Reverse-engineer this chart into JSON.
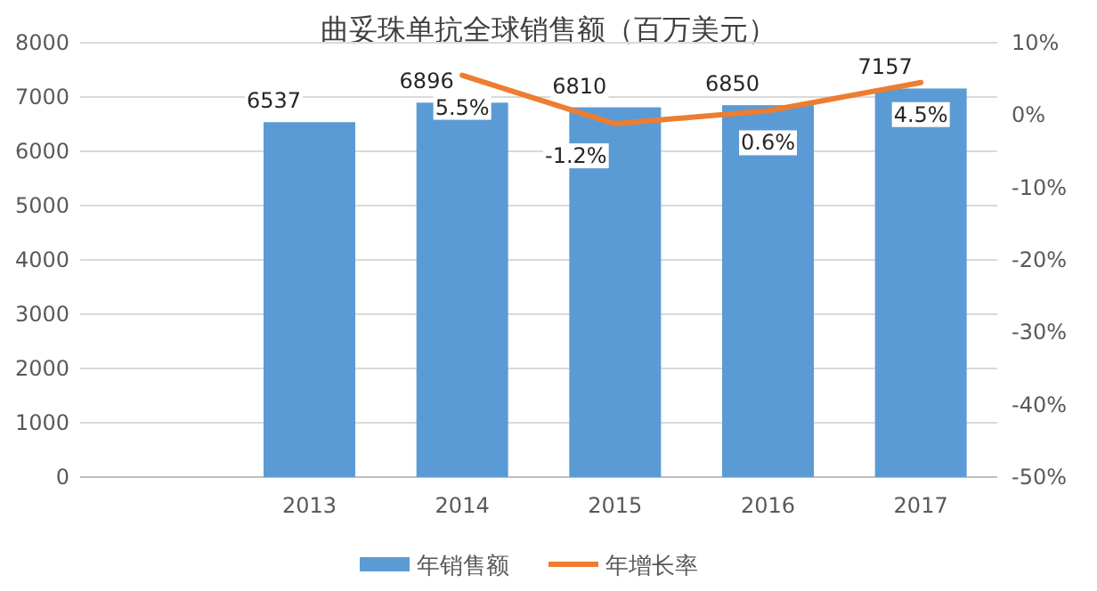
{
  "chart_data": {
    "type": "bar",
    "title": "曲妥珠单抗全球销售额（百万美元）",
    "categories": [
      null,
      "2013",
      "2014",
      "2015",
      "2016",
      "2017"
    ],
    "series": [
      {
        "name": "年销售额",
        "color": "#5b9bd5",
        "values": [
          null,
          6537,
          6896,
          6810,
          6850,
          7157
        ],
        "value_labels": [
          null,
          "6537",
          "6896",
          "6810",
          "6850",
          "7157"
        ]
      },
      {
        "name": "年增长率",
        "type": "line",
        "axis": "y2",
        "color": "#ed7d31",
        "values": [
          null,
          null,
          5.5,
          -1.2,
          0.6,
          4.5
        ],
        "value_labels": [
          null,
          null,
          "5.5%",
          "-1.2%",
          "0.6%",
          "4.5%"
        ]
      }
    ],
    "ylim": [
      0,
      8000
    ],
    "yticks": [
      0,
      1000,
      2000,
      3000,
      4000,
      5000,
      6000,
      7000,
      8000
    ],
    "y2lim": [
      -50,
      10
    ],
    "y2ticks": [
      {
        "value": -50,
        "label": "-50%"
      },
      {
        "value": -40,
        "label": "-40%"
      },
      {
        "value": -30,
        "label": "-30%"
      },
      {
        "value": -20,
        "label": "-20%"
      },
      {
        "value": -10,
        "label": "-10%"
      },
      {
        "value": 0,
        "label": "0%"
      },
      {
        "value": 10,
        "label": "10%"
      }
    ],
    "grid": "y",
    "legend": "bottom",
    "marker": "none",
    "line_style": "solid"
  }
}
